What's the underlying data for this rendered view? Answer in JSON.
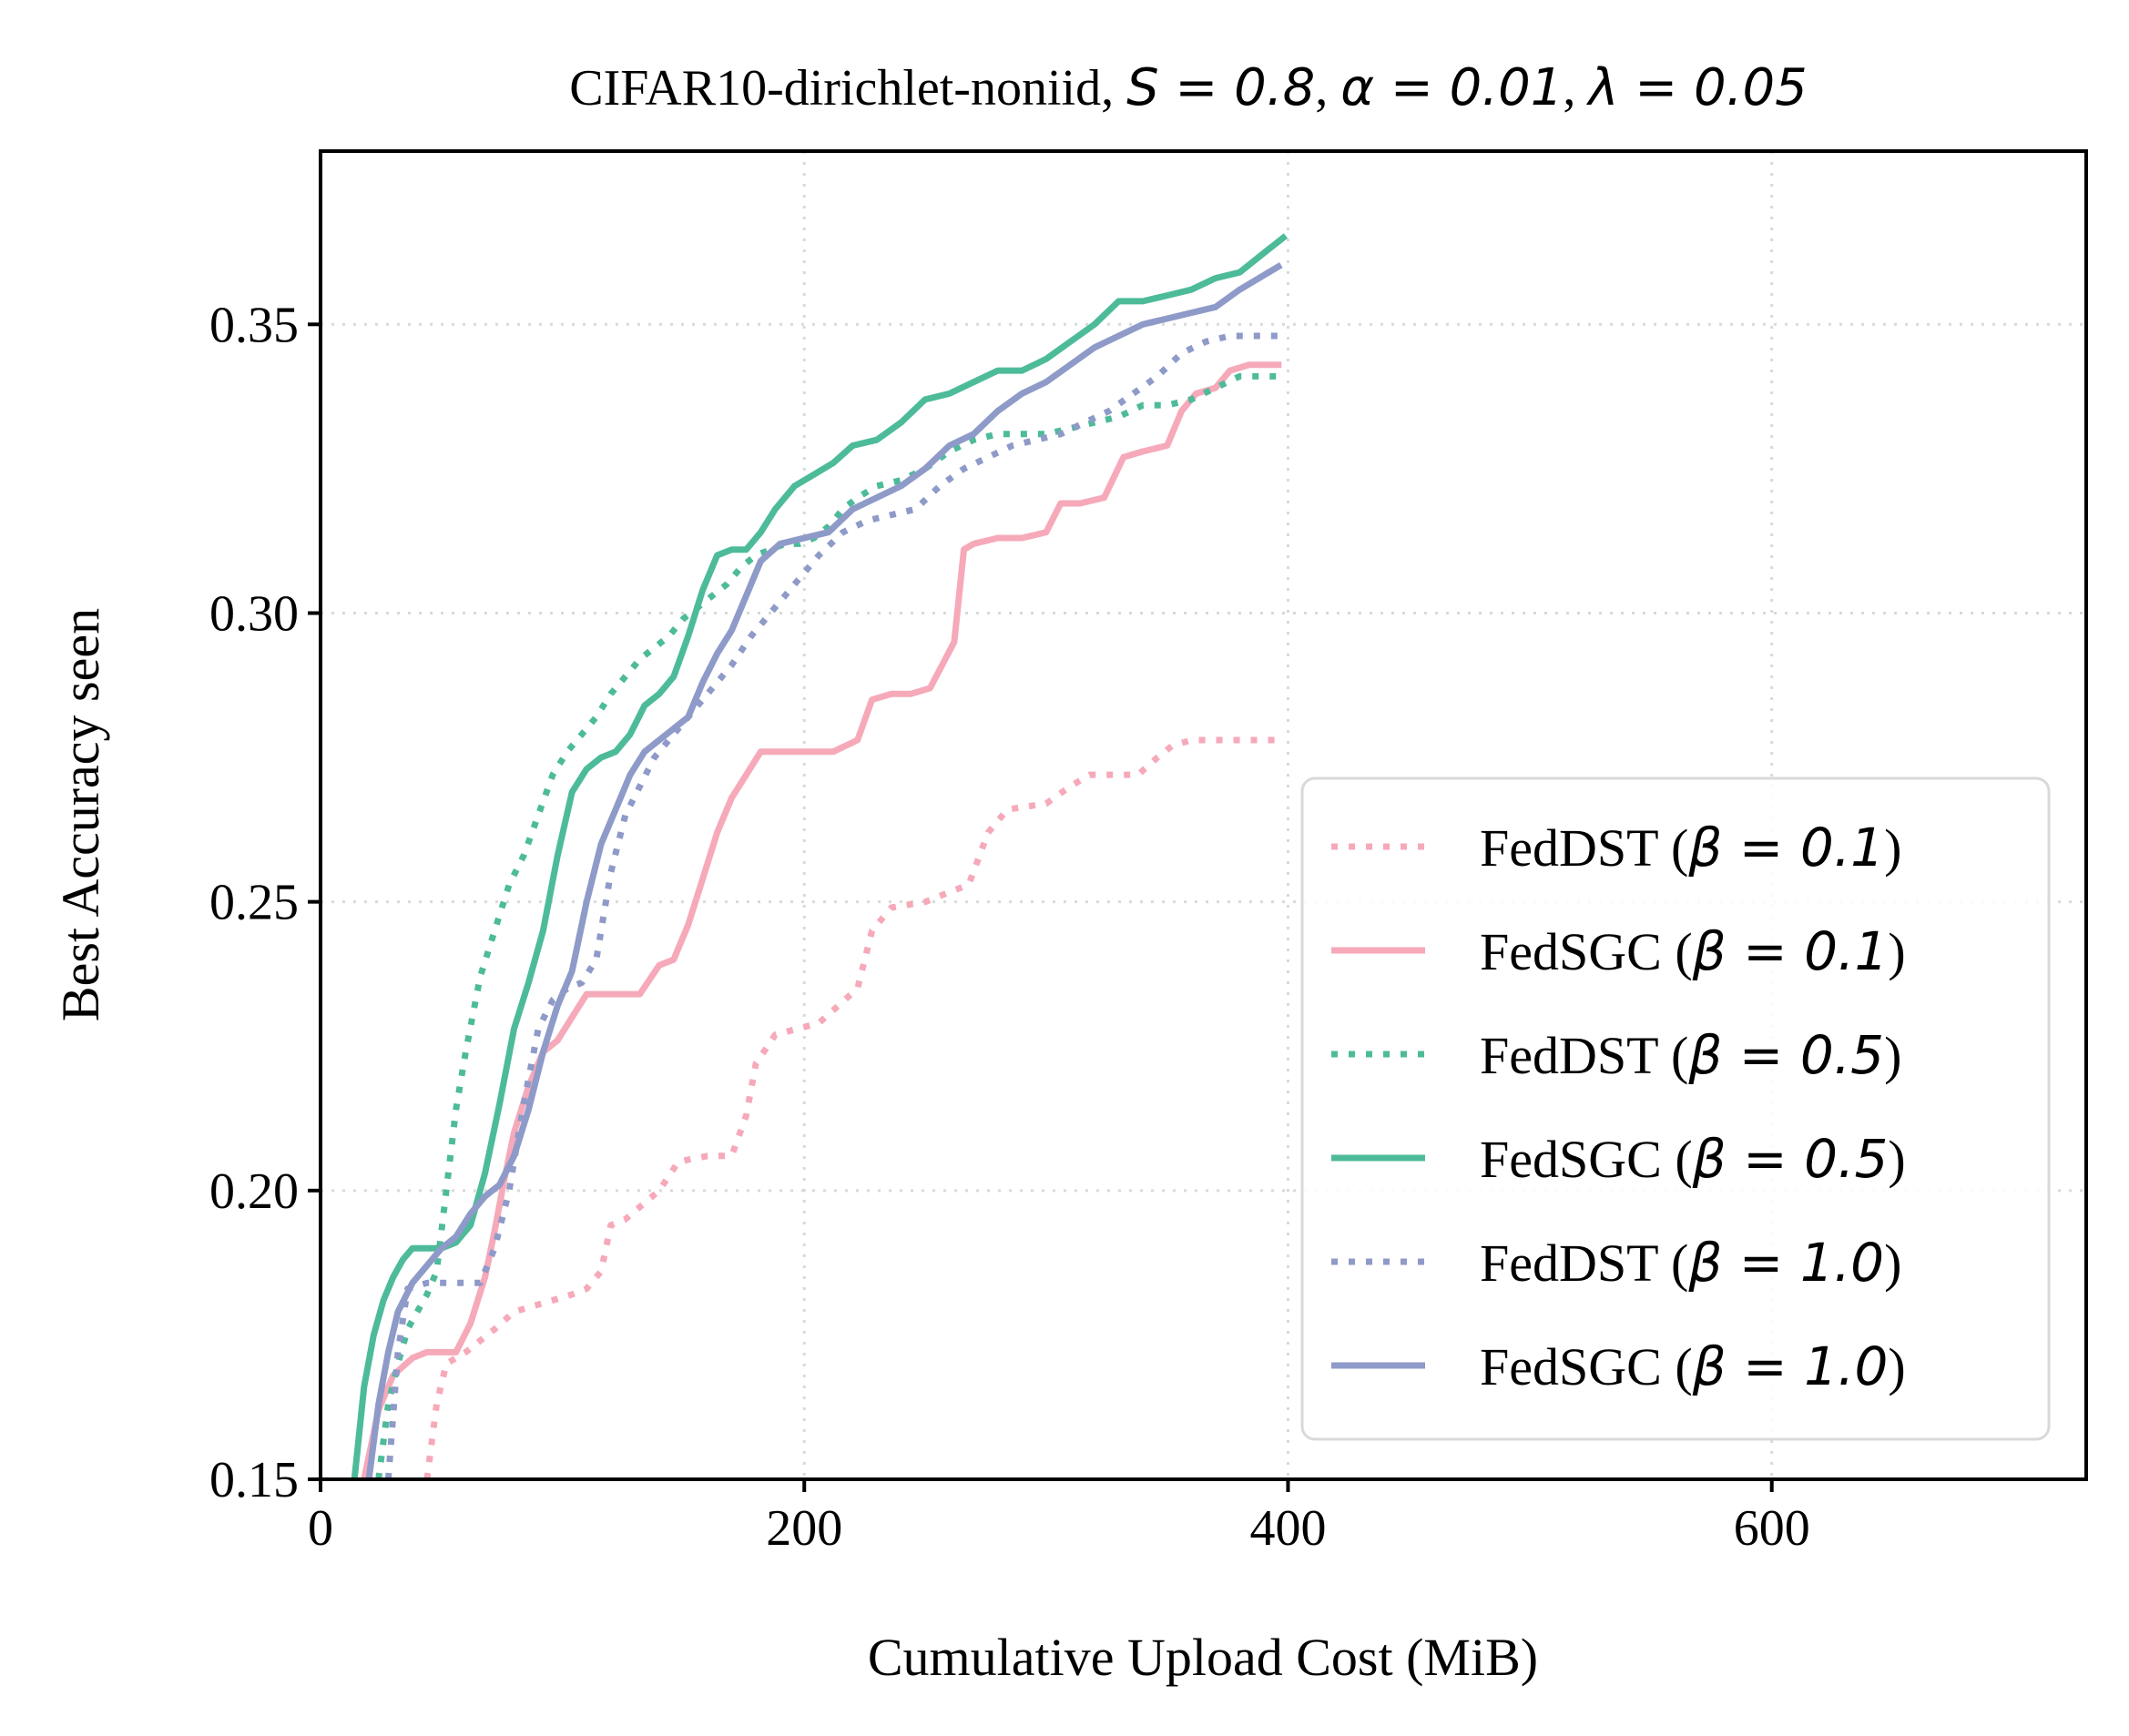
{
  "chart_data": {
    "type": "line",
    "title": "CIFAR10-dirichlet-noniid, S = 0.8, α = 0.01, λ = 0.05",
    "title_parts": {
      "prefix": "CIFAR10-dirichlet-noniid, ",
      "s": "S = 0.8",
      "sep1": ", ",
      "alpha": "α = 0.01",
      "sep2": ", ",
      "lambda": "λ = 0.05"
    },
    "xlabel": "Cumulative Upload Cost (MiB)",
    "ylabel": "Best Accuracy seen",
    "xlim": [
      0,
      730
    ],
    "ylim": [
      0.15,
      0.38
    ],
    "xticks": [
      0,
      200,
      400,
      600
    ],
    "xtick_labels": [
      "0",
      "200",
      "400",
      "600"
    ],
    "yticks": [
      0.15,
      0.2,
      0.25,
      0.3,
      0.35
    ],
    "ytick_labels": [
      "0.15",
      "0.20",
      "0.25",
      "0.30",
      "0.35"
    ],
    "grid": true,
    "legend_position": "lower-right",
    "series": [
      {
        "name": "FedDST (β = 0.1)",
        "label_method": "FedDST",
        "label_beta": "β = 0.1",
        "color": "#f6a9b9",
        "style": "dotted",
        "x": [
          44,
          48,
          52,
          56,
          60,
          66,
          72,
          80,
          88,
          96,
          104,
          110,
          116,
          120,
          126,
          140,
          148,
          160,
          170,
          176,
          180,
          188,
          206,
          222,
          228,
          236,
          250,
          262,
          268,
          276,
          284,
          300,
          310,
          318,
          326,
          338,
          346,
          352,
          360,
          396
        ],
        "y": [
          0.15,
          0.163,
          0.17,
          0.171,
          0.172,
          0.174,
          0.176,
          0.179,
          0.18,
          0.181,
          0.182,
          0.183,
          0.186,
          0.194,
          0.195,
          0.2,
          0.205,
          0.206,
          0.206,
          0.213,
          0.222,
          0.227,
          0.229,
          0.235,
          0.245,
          0.249,
          0.25,
          0.252,
          0.253,
          0.262,
          0.266,
          0.267,
          0.27,
          0.272,
          0.272,
          0.272,
          0.275,
          0.277,
          0.278,
          0.278
        ]
      },
      {
        "name": "FedSGC (β = 0.1)",
        "label_method": "FedSGC",
        "label_beta": "β = 0.1",
        "color": "#f6a9b9",
        "style": "solid",
        "x": [
          18,
          24,
          30,
          38,
          44,
          50,
          56,
          62,
          68,
          72,
          76,
          80,
          86,
          92,
          98,
          104,
          110,
          116,
          124,
          132,
          140,
          146,
          152,
          158,
          164,
          170,
          176,
          182,
          190,
          200,
          212,
          222,
          228,
          236,
          244,
          252,
          262,
          266,
          270,
          280,
          290,
          300,
          306,
          314,
          324,
          332,
          340,
          350,
          356,
          362,
          370,
          376,
          384,
          396
        ],
        "y": [
          0.15,
          0.162,
          0.168,
          0.171,
          0.172,
          0.172,
          0.172,
          0.177,
          0.185,
          0.193,
          0.202,
          0.21,
          0.218,
          0.224,
          0.226,
          0.23,
          0.234,
          0.234,
          0.234,
          0.234,
          0.239,
          0.24,
          0.246,
          0.254,
          0.262,
          0.268,
          0.272,
          0.276,
          0.276,
          0.276,
          0.276,
          0.278,
          0.285,
          0.286,
          0.286,
          0.287,
          0.295,
          0.311,
          0.312,
          0.313,
          0.313,
          0.314,
          0.319,
          0.319,
          0.32,
          0.327,
          0.328,
          0.329,
          0.335,
          0.338,
          0.339,
          0.342,
          0.343,
          0.343
        ]
      },
      {
        "name": "FedDST (β = 0.5)",
        "label_method": "FedDST",
        "label_beta": "β = 0.5",
        "color": "#4dbb9a",
        "style": "dotted",
        "x": [
          24,
          28,
          32,
          36,
          40,
          44,
          48,
          52,
          56,
          60,
          66,
          72,
          78,
          84,
          90,
          96,
          102,
          108,
          114,
          120,
          126,
          132,
          138,
          144,
          150,
          156,
          162,
          168,
          174,
          180,
          186,
          192,
          198,
          204,
          210,
          216,
          222,
          230,
          240,
          250,
          260,
          270,
          280,
          290,
          300,
          310,
          320,
          330,
          340,
          350,
          360,
          370,
          380,
          396
        ],
        "y": [
          0.15,
          0.163,
          0.17,
          0.176,
          0.179,
          0.182,
          0.186,
          0.2,
          0.214,
          0.224,
          0.237,
          0.245,
          0.253,
          0.258,
          0.265,
          0.272,
          0.276,
          0.279,
          0.282,
          0.286,
          0.289,
          0.292,
          0.294,
          0.296,
          0.299,
          0.301,
          0.303,
          0.305,
          0.308,
          0.31,
          0.311,
          0.312,
          0.312,
          0.313,
          0.315,
          0.318,
          0.32,
          0.322,
          0.323,
          0.325,
          0.328,
          0.33,
          0.331,
          0.331,
          0.331,
          0.332,
          0.333,
          0.334,
          0.336,
          0.336,
          0.337,
          0.339,
          0.341,
          0.341
        ]
      },
      {
        "name": "FedSGC (β = 0.5)",
        "label_method": "FedSGC",
        "label_beta": "β = 0.5",
        "color": "#4dbb9a",
        "style": "solid",
        "x": [
          14,
          18,
          22,
          26,
          30,
          34,
          38,
          44,
          50,
          56,
          62,
          68,
          74,
          80,
          86,
          92,
          98,
          104,
          110,
          116,
          122,
          128,
          134,
          140,
          146,
          152,
          158,
          164,
          170,
          176,
          182,
          188,
          196,
          204,
          212,
          220,
          230,
          240,
          250,
          260,
          270,
          280,
          290,
          300,
          310,
          320,
          330,
          340,
          350,
          360,
          370,
          380,
          392,
          398
        ],
        "y": [
          0.15,
          0.166,
          0.175,
          0.181,
          0.185,
          0.188,
          0.19,
          0.19,
          0.19,
          0.191,
          0.194,
          0.203,
          0.215,
          0.228,
          0.236,
          0.245,
          0.258,
          0.269,
          0.273,
          0.275,
          0.276,
          0.279,
          0.284,
          0.286,
          0.289,
          0.296,
          0.304,
          0.31,
          0.311,
          0.311,
          0.314,
          0.318,
          0.322,
          0.324,
          0.326,
          0.329,
          0.33,
          0.333,
          0.337,
          0.338,
          0.34,
          0.342,
          0.342,
          0.344,
          0.347,
          0.35,
          0.354,
          0.354,
          0.355,
          0.356,
          0.358,
          0.359,
          0.363,
          0.365
        ]
      },
      {
        "name": "FedDST (β = 1.0)",
        "label_method": "FedDST",
        "label_beta": "β = 1.0",
        "color": "#8e9ac8",
        "style": "dotted",
        "x": [
          28,
          32,
          36,
          44,
          52,
          60,
          66,
          72,
          78,
          84,
          90,
          96,
          102,
          108,
          114,
          120,
          126,
          132,
          138,
          146,
          154,
          162,
          170,
          178,
          186,
          196,
          206,
          216,
          226,
          236,
          246,
          256,
          266,
          276,
          286,
          296,
          306,
          316,
          326,
          336,
          346,
          356,
          366,
          376,
          386,
          396
        ],
        "y": [
          0.15,
          0.172,
          0.183,
          0.184,
          0.184,
          0.184,
          0.184,
          0.19,
          0.2,
          0.215,
          0.228,
          0.233,
          0.235,
          0.236,
          0.24,
          0.255,
          0.265,
          0.27,
          0.275,
          0.279,
          0.283,
          0.287,
          0.291,
          0.296,
          0.3,
          0.305,
          0.31,
          0.314,
          0.316,
          0.317,
          0.318,
          0.322,
          0.325,
          0.327,
          0.329,
          0.33,
          0.331,
          0.333,
          0.335,
          0.338,
          0.341,
          0.345,
          0.347,
          0.348,
          0.348,
          0.348
        ]
      },
      {
        "name": "FedSGC (β = 1.0)",
        "label_method": "FedSGC",
        "label_beta": "β = 1.0",
        "color": "#8e9ac8",
        "style": "solid",
        "x": [
          20,
          24,
          28,
          32,
          38,
          44,
          50,
          56,
          62,
          68,
          74,
          80,
          86,
          92,
          98,
          104,
          110,
          116,
          122,
          128,
          134,
          140,
          146,
          152,
          158,
          164,
          170,
          176,
          182,
          190,
          200,
          210,
          220,
          230,
          240,
          250,
          260,
          270,
          280,
          290,
          300,
          310,
          320,
          330,
          340,
          350,
          360,
          370,
          380,
          396
        ],
        "y": [
          0.15,
          0.163,
          0.172,
          0.179,
          0.184,
          0.187,
          0.19,
          0.192,
          0.196,
          0.199,
          0.201,
          0.206,
          0.214,
          0.224,
          0.232,
          0.238,
          0.25,
          0.26,
          0.266,
          0.272,
          0.276,
          0.278,
          0.28,
          0.282,
          0.288,
          0.293,
          0.297,
          0.303,
          0.309,
          0.312,
          0.313,
          0.314,
          0.318,
          0.32,
          0.322,
          0.325,
          0.329,
          0.331,
          0.335,
          0.338,
          0.34,
          0.343,
          0.346,
          0.348,
          0.35,
          0.351,
          0.352,
          0.353,
          0.356,
          0.36
        ]
      }
    ]
  }
}
